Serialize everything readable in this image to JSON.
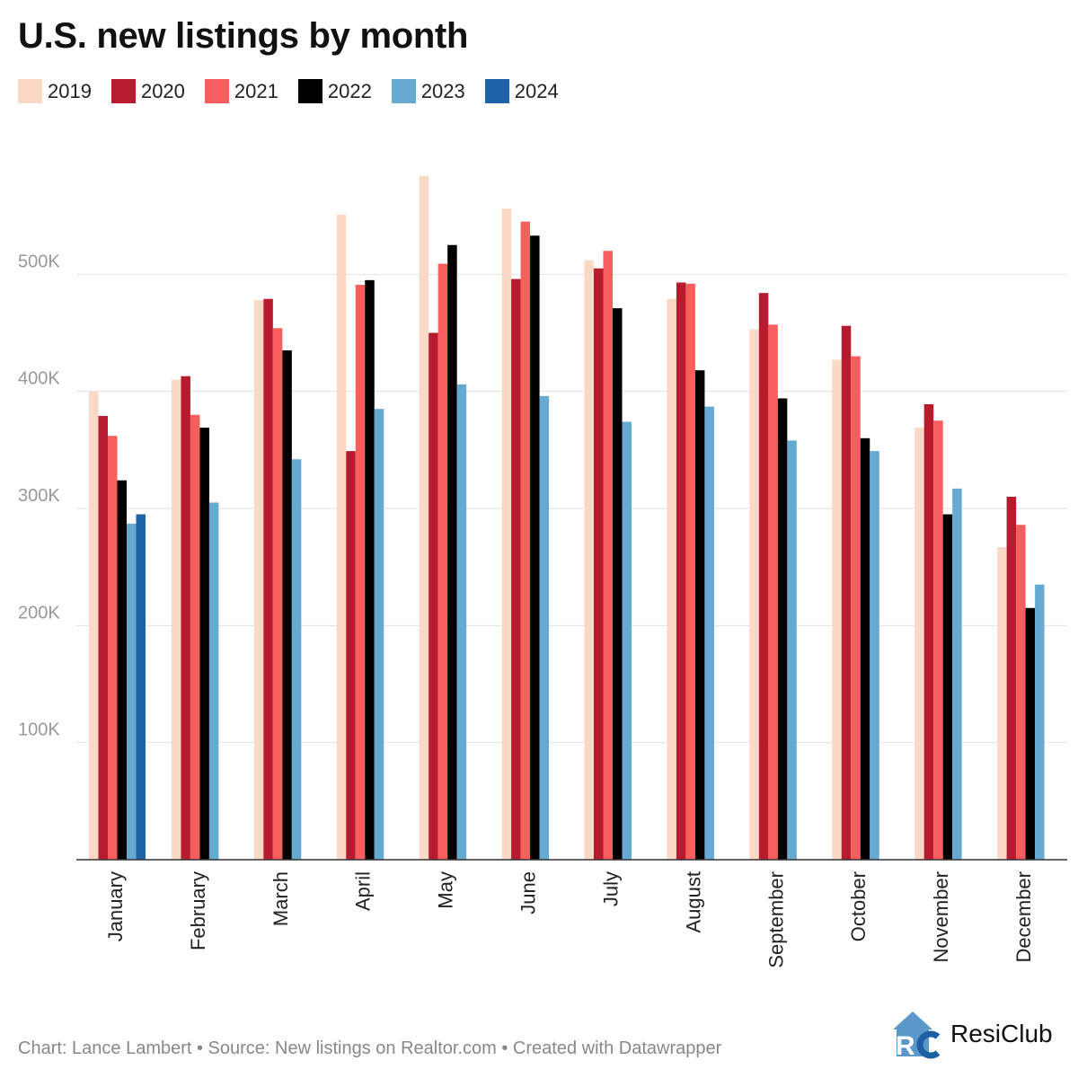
{
  "colors": {
    "2019": "#fcd9c6",
    "2020": "#b61c2e",
    "2021": "#f75f5f",
    "2022": "#000000",
    "2023": "#66a9d1",
    "2024": "#1e62a8",
    "grid": "#e2e2e2",
    "axis_text": "#999999"
  },
  "chart_data": {
    "type": "bar",
    "title": "U.S. new listings by month",
    "categories": [
      "January",
      "February",
      "March",
      "April",
      "May",
      "June",
      "July",
      "August",
      "September",
      "October",
      "November",
      "December"
    ],
    "series": [
      {
        "name": "2019",
        "values": [
          400000,
          410000,
          478000,
          551000,
          584000,
          556000,
          512000,
          479000,
          453000,
          427000,
          369000,
          267000
        ]
      },
      {
        "name": "2020",
        "values": [
          379000,
          413000,
          479000,
          349000,
          450000,
          496000,
          505000,
          493000,
          484000,
          456000,
          389000,
          310000
        ]
      },
      {
        "name": "2021",
        "values": [
          362000,
          380000,
          454000,
          491000,
          509000,
          545000,
          520000,
          492000,
          457000,
          430000,
          375000,
          286000
        ]
      },
      {
        "name": "2022",
        "values": [
          324000,
          369000,
          435000,
          495000,
          525000,
          533000,
          471000,
          418000,
          394000,
          360000,
          295000,
          215000
        ]
      },
      {
        "name": "2023",
        "values": [
          287000,
          305000,
          342000,
          385000,
          406000,
          396000,
          374000,
          387000,
          358000,
          349000,
          317000,
          235000
        ]
      },
      {
        "name": "2024",
        "values": [
          295000,
          null,
          null,
          null,
          null,
          null,
          null,
          null,
          null,
          null,
          null,
          null
        ]
      }
    ],
    "ylim": [
      0,
      600000
    ],
    "yticks": [
      100000,
      200000,
      300000,
      400000,
      500000
    ],
    "ytick_labels": [
      "100K",
      "200K",
      "300K",
      "400K",
      "500K"
    ],
    "xlabel": "",
    "ylabel": "",
    "grid": true,
    "legend_position": "top-left"
  },
  "footer": {
    "source_text": "Chart: Lance Lambert • Source: New listings on Realtor.com • Created with Datawrapper",
    "brand_name": "ResiClub",
    "brand_logo": "resiclub-logo"
  }
}
